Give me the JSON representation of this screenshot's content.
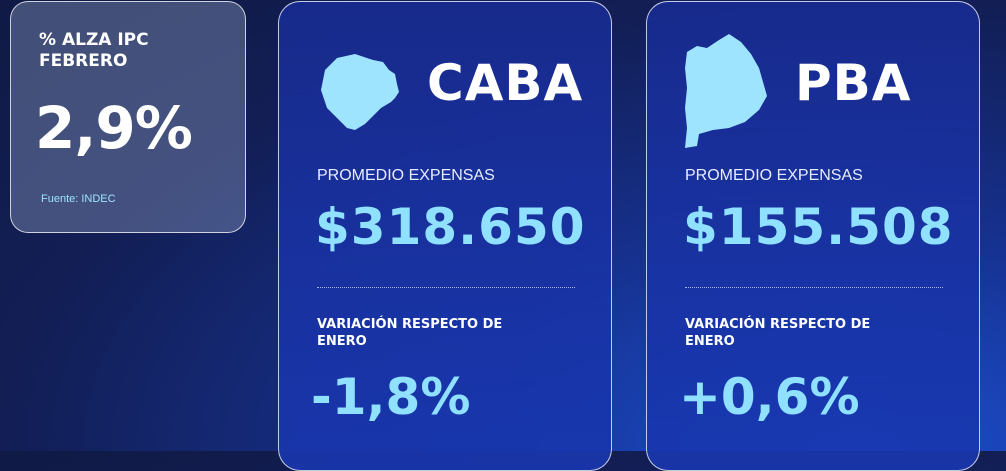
{
  "ipc": {
    "title": "% ALZA IPC FEBRERO",
    "value": "2,9%",
    "source": "Fuente: INDEC"
  },
  "caba": {
    "name": "CABA",
    "avg_label": "PROMEDIO EXPENSAS",
    "avg_value": "$318.650",
    "var_label": "VARIACIÓN RESPECTO DE ENERO",
    "var_value": "-1,8%"
  },
  "pba": {
    "name": "PBA",
    "avg_label": "PROMEDIO EXPENSAS",
    "avg_value": "$155.508",
    "var_label": "VARIACIÓN RESPECTO DE ENERO",
    "var_value": "+0,6%"
  },
  "colors": {
    "accent": "#8fe1ff",
    "background": "#121e55"
  }
}
